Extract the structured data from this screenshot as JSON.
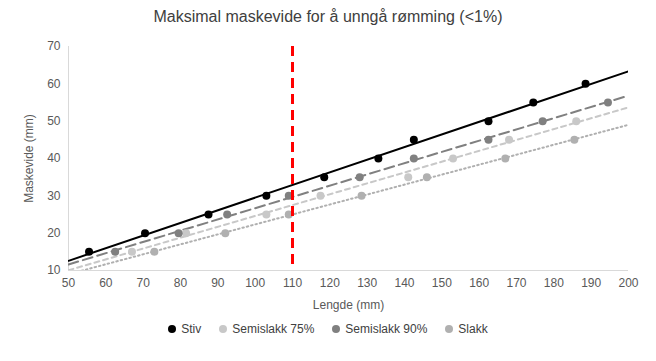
{
  "chart_data": {
    "type": "scatter",
    "title": "Maksimal maskevide for å unngå rømming (<1%)",
    "x_label": "Lengde (mm)",
    "y_label": "Maskevide (mm)",
    "xlim": [
      50,
      200
    ],
    "xticks": [
      50,
      60,
      70,
      80,
      90,
      100,
      110,
      120,
      130,
      140,
      150,
      160,
      170,
      180,
      190,
      200
    ],
    "ylim": [
      10,
      70
    ],
    "yticks": [
      10,
      20,
      30,
      40,
      50,
      60,
      70
    ],
    "grid": false,
    "legend": "bottom",
    "vline": {
      "x": 110,
      "color": "#ff0000",
      "line_style": "dashed"
    },
    "series": [
      {
        "name": "Stiv",
        "color": "#000000",
        "marker": "circle",
        "line_style": "solid",
        "x": [
          55.5,
          70.5,
          87.5,
          103,
          118.5,
          133,
          142.5,
          162.5,
          174.5,
          188.5
        ],
        "values": [
          15,
          20,
          25,
          30,
          35,
          40,
          45,
          50,
          55,
          60
        ]
      },
      {
        "name": "Semislakk 75%",
        "color": "#c8c8c8",
        "marker": "circle",
        "line_style": "dash",
        "x": [
          67,
          81.5,
          103,
          117.5,
          141,
          153,
          168,
          186
        ],
        "values": [
          15,
          20,
          25,
          30,
          35,
          40,
          45,
          50
        ]
      },
      {
        "name": "Semislakk 90%",
        "color": "#808080",
        "marker": "circle",
        "line_style": "longdash",
        "x": [
          62.5,
          79.5,
          92.5,
          109,
          128,
          142.5,
          162.5,
          177,
          194.5
        ],
        "values": [
          15,
          20,
          25,
          30,
          35,
          40,
          45,
          50,
          55
        ]
      },
      {
        "name": "Slakk",
        "color": "#b0b0b0",
        "marker": "circle",
        "line_style": "dot",
        "x": [
          73,
          92,
          109,
          128.5,
          146,
          167,
          185.5
        ],
        "values": [
          15,
          20,
          25,
          30,
          35,
          40,
          45
        ]
      }
    ]
  }
}
